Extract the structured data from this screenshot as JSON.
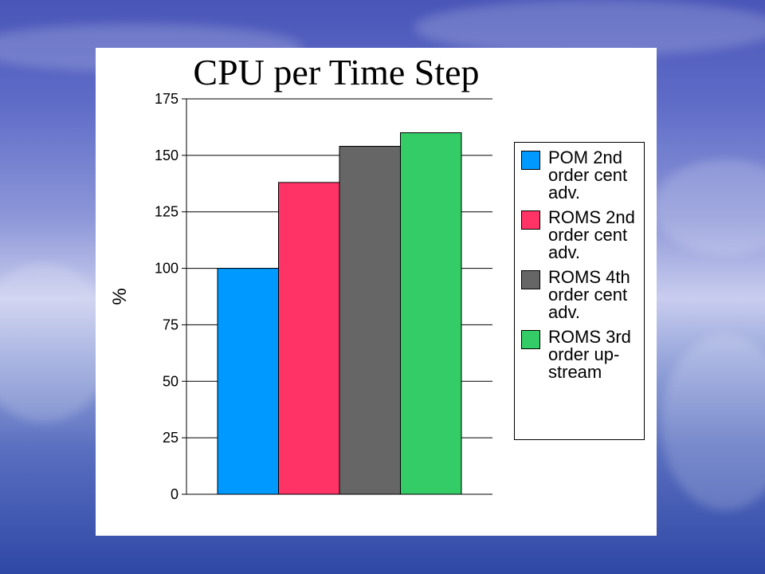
{
  "chart_data": {
    "type": "bar",
    "title": "CPU per Time Step",
    "xlabel": "",
    "ylabel": "%",
    "ylim": [
      0,
      175
    ],
    "yticks": [
      "0",
      "25",
      "50",
      "75",
      "100",
      "125",
      "150",
      "175"
    ],
    "grid": true,
    "legend_position": "right",
    "series": [
      {
        "name": "POM 2nd order cent adv.",
        "values": [
          100
        ],
        "color": "#0099ff"
      },
      {
        "name": "ROMS 2nd order cent adv.",
        "values": [
          138
        ],
        "color": "#ff3366"
      },
      {
        "name": "ROMS 4th order cent adv.",
        "values": [
          154
        ],
        "color": "#666666"
      },
      {
        "name": "ROMS 3rd order up-stream",
        "values": [
          160
        ],
        "color": "#33cc66"
      }
    ]
  }
}
